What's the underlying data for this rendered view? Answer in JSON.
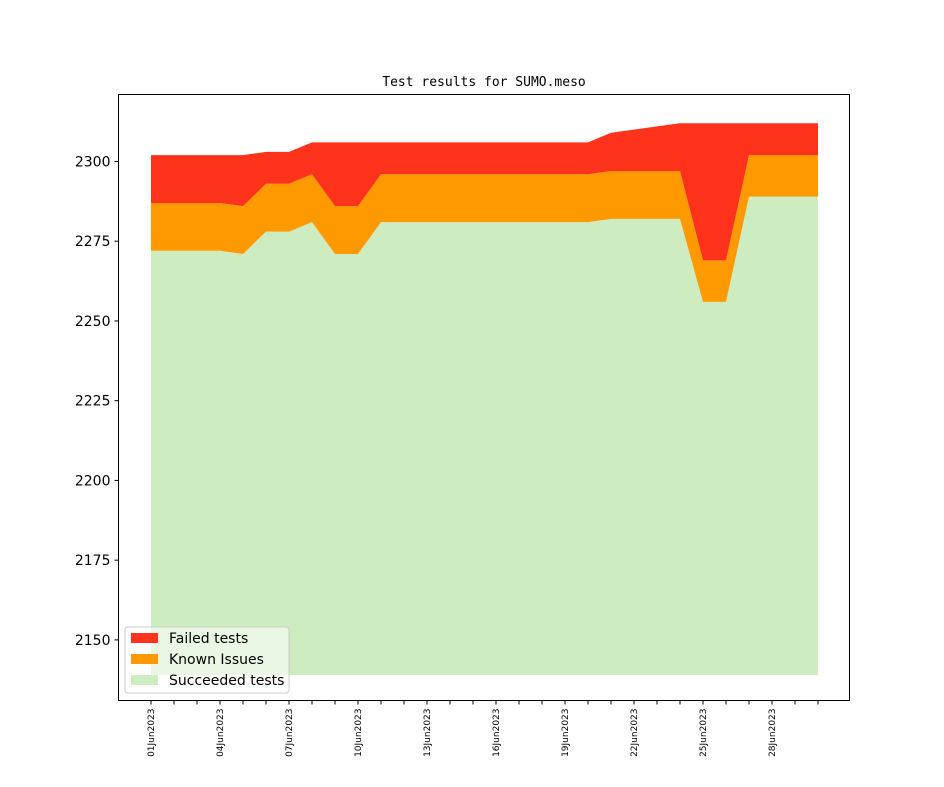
{
  "chart_data": {
    "type": "area",
    "stacked": true,
    "title": "Test results for SUMO.meso",
    "xlabel": "",
    "ylabel": "",
    "x": [
      "01Jun2023",
      "02Jun2023",
      "03Jun2023",
      "04Jun2023",
      "05Jun2023",
      "06Jun2023",
      "07Jun2023",
      "08Jun2023",
      "09Jun2023",
      "10Jun2023",
      "11Jun2023",
      "12Jun2023",
      "13Jun2023",
      "14Jun2023",
      "15Jun2023",
      "16Jun2023",
      "17Jun2023",
      "18Jun2023",
      "19Jun2023",
      "20Jun2023",
      "21Jun2023",
      "22Jun2023",
      "23Jun2023",
      "24Jun2023",
      "25Jun2023",
      "26Jun2023",
      "27Jun2023",
      "28Jun2023",
      "29Jun2023",
      "30Jun2023"
    ],
    "xtick_labels": [
      "01Jun2023",
      "04Jun2023",
      "07Jun2023",
      "10Jun2023",
      "13Jun2023",
      "16Jun2023",
      "19Jun2023",
      "22Jun2023",
      "25Jun2023",
      "28Jun2023"
    ],
    "yticks": [
      2150,
      2175,
      2200,
      2225,
      2250,
      2275,
      2300
    ],
    "ylim": [
      2131,
      2321
    ],
    "baseline": 2139,
    "series": [
      {
        "name": "Succeeded tests",
        "color": "#cdecbf",
        "cumulative_top": [
          2272,
          2272,
          2272,
          2272,
          2271,
          2278,
          2278,
          2281,
          2271,
          2271,
          2281,
          2281,
          2281,
          2281,
          2281,
          2281,
          2281,
          2281,
          2281,
          2281,
          2282,
          2282,
          2282,
          2282,
          2256,
          2256,
          2289,
          2289,
          2289,
          2289
        ]
      },
      {
        "name": "Known Issues",
        "color": "#ff9900",
        "cumulative_top": [
          2287,
          2287,
          2287,
          2287,
          2286,
          2293,
          2293,
          2296,
          2286,
          2286,
          2296,
          2296,
          2296,
          2296,
          2296,
          2296,
          2296,
          2296,
          2296,
          2296,
          2297,
          2297,
          2297,
          2297,
          2269,
          2269,
          2302,
          2302,
          2302,
          2302
        ]
      },
      {
        "name": "Failed tests",
        "color": "#ff331c",
        "cumulative_top": [
          2302,
          2302,
          2302,
          2302,
          2302,
          2303,
          2303,
          2306,
          2306,
          2306,
          2306,
          2306,
          2306,
          2306,
          2306,
          2306,
          2306,
          2306,
          2306,
          2306,
          2309,
          2310,
          2311,
          2312,
          2312,
          2312,
          2312,
          2312,
          2312,
          2312
        ]
      }
    ],
    "legend": {
      "placement": "lower-left",
      "entries": [
        "Failed tests",
        "Known Issues",
        "Succeeded tests"
      ]
    },
    "grid": false
  }
}
